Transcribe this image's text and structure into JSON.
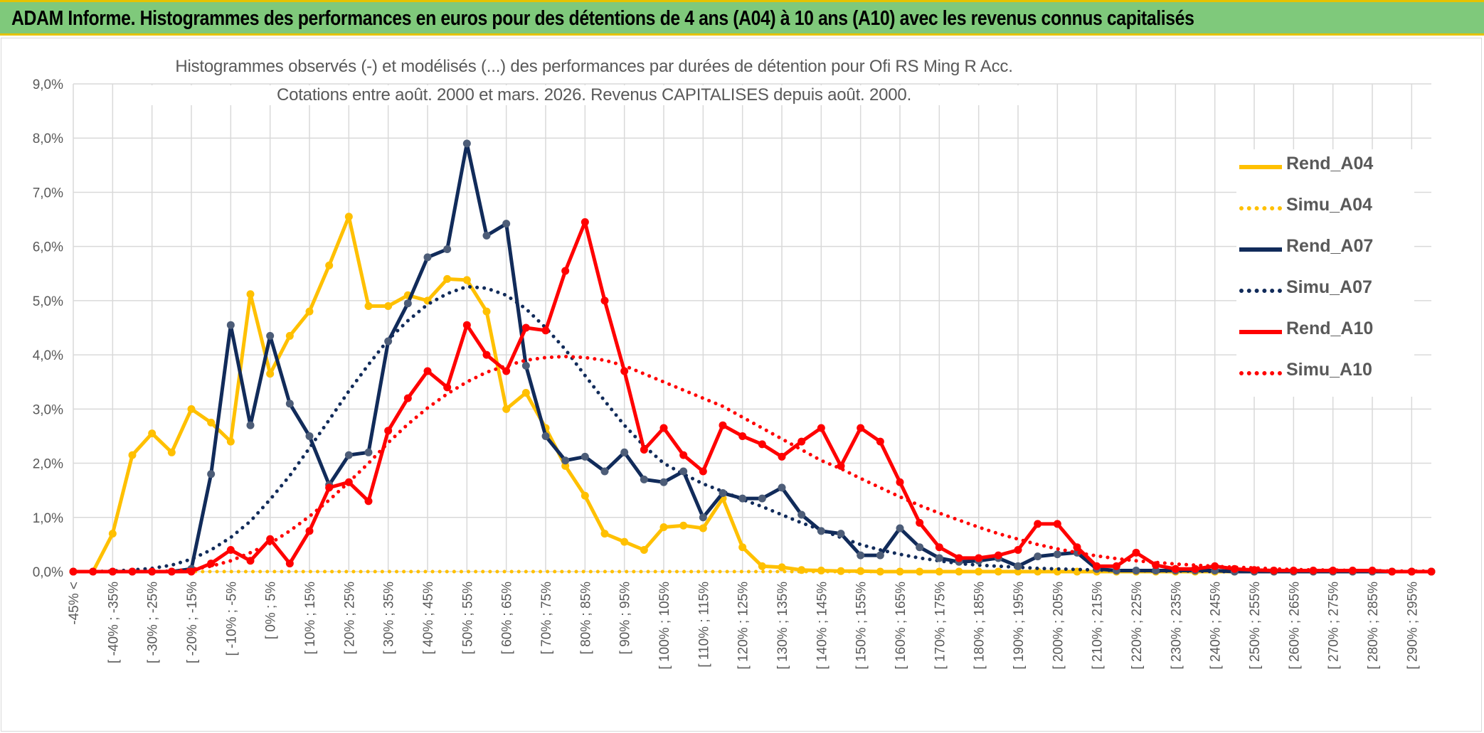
{
  "banner": {
    "title": "ADAM Informe. Histogrammes des performances en euros pour des détentions de 4 ans (A04) à 10 ans (A10) avec les revenus connus capitalisés"
  },
  "chart_data": {
    "type": "line",
    "title": "Histogrammes observés (-) et modélisés (...) des performances par durées de détention pour Ofi RS Ming R Acc.",
    "subtitle": "Cotations entre août. 2000 et mars. 2026. Revenus CAPITALISES depuis août. 2000.",
    "xlabel": "",
    "ylabel": "",
    "ylim": [
      0,
      9
    ],
    "y_ticks": [
      "0,0%",
      "1,0%",
      "2,0%",
      "3,0%",
      "4,0%",
      "5,0%",
      "6,0%",
      "7,0%",
      "8,0%",
      "9,0%"
    ],
    "x_tick_labels": [
      "-45% <",
      "[ -40% ; -35%",
      "[ -30% ; -25%",
      "[ -20% ; -15%",
      "[ -10% ; -5%",
      "[ 0% ; 5%",
      "[ 10% ; 15%",
      "[ 20% ; 25%",
      "[ 30% ; 35%",
      "[ 40% ; 45%",
      "[ 50% ; 55%",
      "[ 60% ; 65%",
      "[ 70% ; 75%",
      "[ 80% ; 85%",
      "[ 90% ; 95%",
      "[ 100% ; 105%",
      "[ 110% ; 115%",
      "[ 120% ; 125%",
      "[ 130% ; 135%",
      "[ 140% ; 145%",
      "[ 150% ; 155%",
      "[ 160% ; 165%",
      "[ 170% ; 175%",
      "[ 180% ; 185%",
      "[ 190% ; 195%",
      "[ 200% ; 205%",
      "[ 210% ; 215%",
      "[ 220% ; 225%",
      "[ 230% ; 235%",
      "[ 240% ; 245%",
      "[ 250% ; 255%",
      "[ 260% ; 265%",
      "[ 270% ; 275%",
      "[ 280% ; 285%",
      "[ 290% ; 295%"
    ],
    "grid": true,
    "legend_position": "right",
    "series": [
      {
        "name": "Rend_A04",
        "style": "solid",
        "color": "#ffc000",
        "values": [
          0,
          0,
          0.7,
          2.15,
          2.55,
          2.2,
          3.0,
          2.75,
          2.4,
          5.12,
          3.65,
          4.35,
          4.8,
          5.65,
          6.55,
          4.9,
          4.9,
          5.1,
          5.0,
          5.4,
          5.38,
          4.8,
          3.0,
          3.3,
          2.65,
          1.95,
          1.4,
          0.7,
          0.55,
          0.4,
          0.82,
          0.85,
          0.8,
          1.35,
          0.45,
          0.1,
          0.08,
          0.03,
          0.02,
          0.01,
          0.01,
          0,
          0,
          0,
          0,
          0,
          0,
          0,
          0,
          0,
          0,
          0,
          0,
          0,
          0,
          0,
          0,
          0,
          0,
          0,
          0,
          0,
          0,
          0,
          0,
          0,
          0,
          0,
          0,
          0
        ]
      },
      {
        "name": "Simu_A04",
        "style": "dotted",
        "color": "#ffc000",
        "values": [
          0,
          0,
          0,
          0,
          0,
          0,
          0,
          0,
          0,
          0,
          0,
          0,
          0,
          0,
          0,
          0,
          0,
          0,
          0,
          0,
          0,
          0,
          0,
          0,
          0,
          0,
          0,
          0,
          0,
          0,
          0,
          0,
          0,
          0,
          0,
          0,
          0,
          0,
          0,
          0,
          0,
          0,
          0,
          0,
          0,
          0,
          0,
          0,
          0,
          0,
          0,
          0,
          0,
          0,
          0,
          0,
          0,
          0,
          0,
          0,
          0,
          0,
          0,
          0,
          0,
          0,
          0,
          0,
          0,
          0
        ]
      },
      {
        "name": "Rend_A07",
        "style": "solid",
        "color": "#112b5a",
        "values": [
          0,
          0,
          0,
          0,
          0,
          0,
          0.05,
          1.8,
          4.55,
          2.7,
          4.35,
          3.1,
          2.5,
          1.6,
          2.15,
          2.2,
          4.25,
          4.95,
          5.8,
          5.95,
          7.9,
          6.2,
          6.42,
          3.8,
          2.5,
          2.05,
          2.12,
          1.85,
          2.2,
          1.7,
          1.65,
          1.85,
          1.0,
          1.45,
          1.35,
          1.35,
          1.55,
          1.05,
          0.75,
          0.7,
          0.3,
          0.3,
          0.8,
          0.45,
          0.25,
          0.18,
          0.2,
          0.25,
          0.1,
          0.28,
          0.32,
          0.35,
          0.05,
          0.02,
          0.02,
          0.02,
          0.02,
          0.02,
          0.02,
          0,
          0,
          0,
          0,
          0,
          0,
          0,
          0,
          0,
          0,
          0
        ]
      },
      {
        "name": "Simu_A07",
        "style": "dotted",
        "color": "#112b5a",
        "values": [
          0,
          0,
          0.01,
          0.03,
          0.06,
          0.12,
          0.23,
          0.4,
          0.63,
          0.93,
          1.33,
          1.77,
          2.28,
          2.8,
          3.33,
          3.82,
          4.28,
          4.63,
          4.93,
          5.13,
          5.26,
          5.23,
          5.1,
          4.85,
          4.5,
          4.1,
          3.62,
          3.15,
          2.7,
          2.32,
          2.0,
          1.8,
          1.62,
          1.48,
          1.33,
          1.2,
          1.05,
          0.9,
          0.77,
          0.63,
          0.5,
          0.4,
          0.32,
          0.25,
          0.2,
          0.15,
          0.12,
          0.1,
          0.08,
          0.06,
          0.05,
          0.04,
          0.03,
          0.02,
          0.02,
          0.01,
          0.01,
          0.01,
          0,
          0,
          0,
          0,
          0,
          0,
          0,
          0,
          0,
          0,
          0,
          0
        ]
      },
      {
        "name": "Rend_A10",
        "style": "solid",
        "color": "#ff0000",
        "values": [
          0,
          0,
          0,
          0,
          0,
          0,
          0,
          0.15,
          0.4,
          0.2,
          0.6,
          0.15,
          0.75,
          1.55,
          1.65,
          1.3,
          2.6,
          3.2,
          3.7,
          3.4,
          4.55,
          4.0,
          3.7,
          4.5,
          4.45,
          5.55,
          6.45,
          5.0,
          3.7,
          2.25,
          2.65,
          2.15,
          1.85,
          2.7,
          2.5,
          2.35,
          2.12,
          2.4,
          2.65,
          1.95,
          2.65,
          2.4,
          1.65,
          0.9,
          0.45,
          0.25,
          0.25,
          0.3,
          0.4,
          0.88,
          0.88,
          0.45,
          0.1,
          0.1,
          0.35,
          0.12,
          0.05,
          0.05,
          0.1,
          0.05,
          0.03,
          0.02,
          0.02,
          0.02,
          0.02,
          0.02,
          0.02,
          0,
          0,
          0
        ]
      },
      {
        "name": "Simu_A10",
        "style": "dotted",
        "color": "#ff0000",
        "values": [
          0,
          0,
          0,
          0,
          0,
          0.01,
          0.04,
          0.1,
          0.2,
          0.35,
          0.52,
          0.75,
          1.02,
          1.32,
          1.65,
          2.0,
          2.38,
          2.72,
          3.02,
          3.28,
          3.5,
          3.68,
          3.8,
          3.9,
          3.95,
          3.97,
          3.95,
          3.9,
          3.8,
          3.65,
          3.5,
          3.35,
          3.2,
          3.05,
          2.85,
          2.65,
          2.45,
          2.25,
          2.05,
          1.9,
          1.72,
          1.55,
          1.38,
          1.22,
          1.08,
          0.95,
          0.82,
          0.7,
          0.6,
          0.5,
          0.42,
          0.35,
          0.29,
          0.24,
          0.2,
          0.17,
          0.14,
          0.12,
          0.1,
          0.08,
          0.07,
          0.05,
          0.04,
          0.03,
          0.03,
          0.02,
          0.02,
          0.01,
          0.01,
          0.01
        ]
      }
    ]
  }
}
